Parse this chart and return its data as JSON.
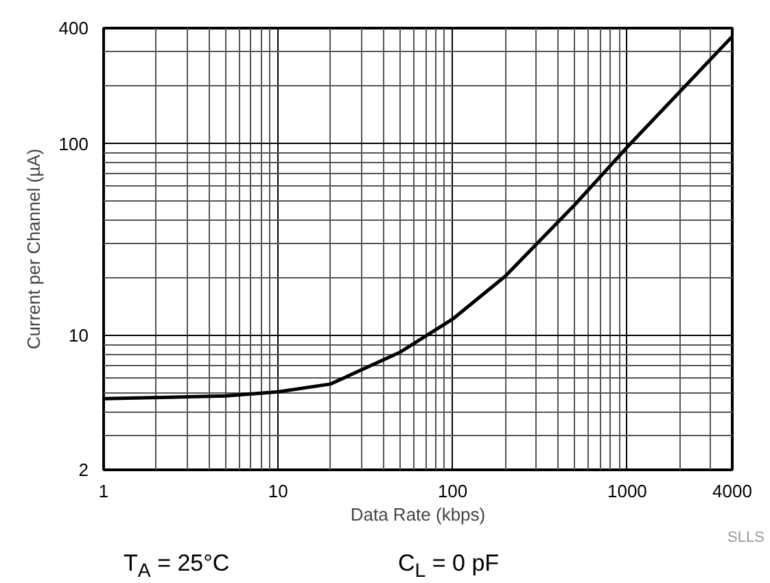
{
  "chart_data": {
    "type": "line",
    "xlabel": "Data Rate (kbps)",
    "ylabel": "Current per Channel (µA)",
    "x": [
      1,
      5,
      10,
      20,
      50,
      100,
      200,
      500,
      1000,
      4000
    ],
    "series": [
      {
        "color": "#000000",
        "values": [
          4.7,
          4.85,
          5.1,
          5.6,
          8.2,
          12.2,
          20.4,
          48,
          96,
          362
        ]
      }
    ],
    "log": "xy",
    "xlim": [
      1,
      4000
    ],
    "ylim": [
      2,
      400
    ],
    "xticks": [
      1,
      10,
      100,
      1000,
      4000
    ],
    "yticks": [
      2,
      10,
      100,
      400
    ],
    "grid": true,
    "marker": "none",
    "line_style": "solid",
    "annotations": [
      "SLLS",
      "T$_{A}$ = 25°C",
      "C$_{L}$ = 0 pF"
    ]
  }
}
